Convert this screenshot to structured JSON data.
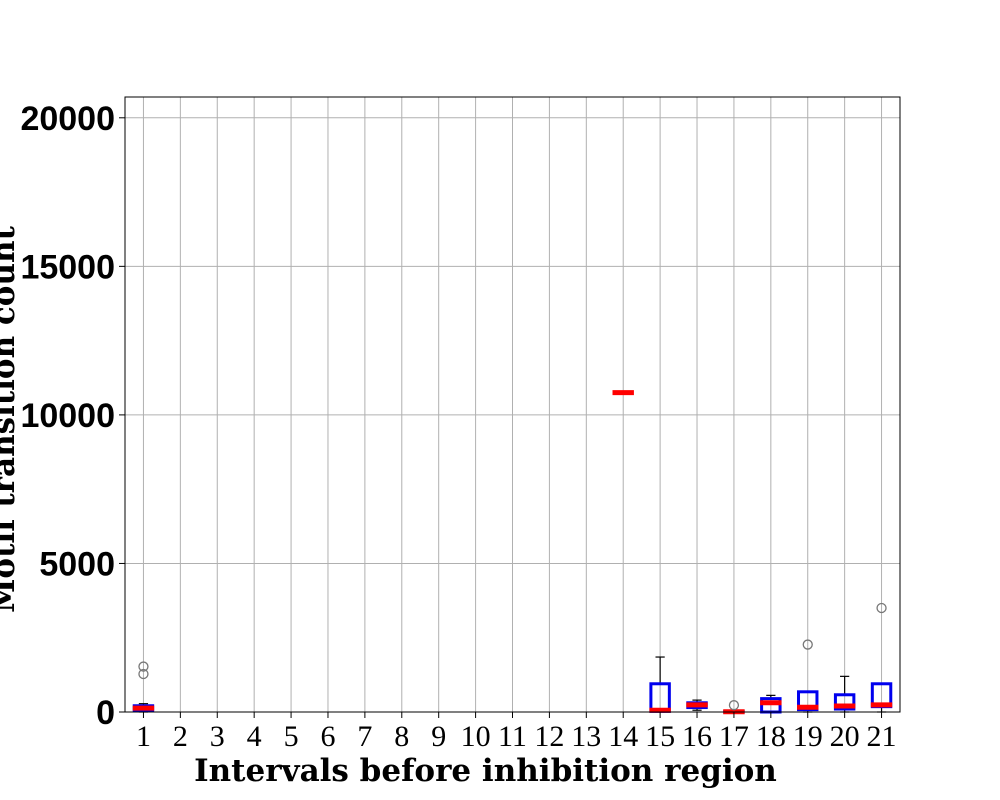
{
  "chart_data": {
    "type": "boxplot",
    "xlabel": "Intervals before inhibition region",
    "ylabel": "Motif transition count",
    "categories": [
      "1",
      "2",
      "3",
      "4",
      "5",
      "6",
      "7",
      "8",
      "9",
      "10",
      "11",
      "12",
      "13",
      "14",
      "15",
      "16",
      "17",
      "18",
      "19",
      "20",
      "21"
    ],
    "yticks": [
      "0",
      "5000",
      "10000",
      "15000",
      "20000"
    ],
    "ytick_values": [
      0,
      5000,
      10000,
      15000,
      20000
    ],
    "ylim": [
      0,
      20700
    ],
    "grid": true,
    "colors": {
      "box": "#0000ee",
      "median": "#ff0000",
      "whisker": "#000000",
      "flier": "#777777",
      "grid": "#b0b0b0"
    },
    "boxes": [
      {
        "category": "1",
        "q1": 40,
        "median": 130,
        "q3": 210,
        "whislo": 0,
        "whishi": 280,
        "fliers": [
          1280,
          1530
        ]
      },
      {
        "category": "14",
        "q1": 10750,
        "median": 10750,
        "q3": 10750,
        "whislo": 10750,
        "whishi": 10750,
        "fliers": []
      },
      {
        "category": "15",
        "q1": 20,
        "median": 60,
        "q3": 950,
        "whislo": 0,
        "whishi": 1850,
        "fliers": []
      },
      {
        "category": "16",
        "q1": 150,
        "median": 240,
        "q3": 310,
        "whislo": 60,
        "whishi": 400,
        "fliers": []
      },
      {
        "category": "17",
        "q1": 0,
        "median": 10,
        "q3": 20,
        "whislo": 0,
        "whishi": 30,
        "fliers": [
          230
        ]
      },
      {
        "category": "18",
        "q1": 0,
        "median": 310,
        "q3": 450,
        "whislo": 0,
        "whishi": 560,
        "fliers": []
      },
      {
        "category": "19",
        "q1": 80,
        "median": 160,
        "q3": 680,
        "whislo": 0,
        "whishi": 700,
        "fliers": [
          2270
        ]
      },
      {
        "category": "20",
        "q1": 100,
        "median": 200,
        "q3": 580,
        "whislo": 0,
        "whishi": 1200,
        "fliers": []
      },
      {
        "category": "21",
        "q1": 180,
        "median": 240,
        "q3": 950,
        "whislo": 0,
        "whishi": 950,
        "fliers": [
          3500
        ]
      }
    ]
  }
}
